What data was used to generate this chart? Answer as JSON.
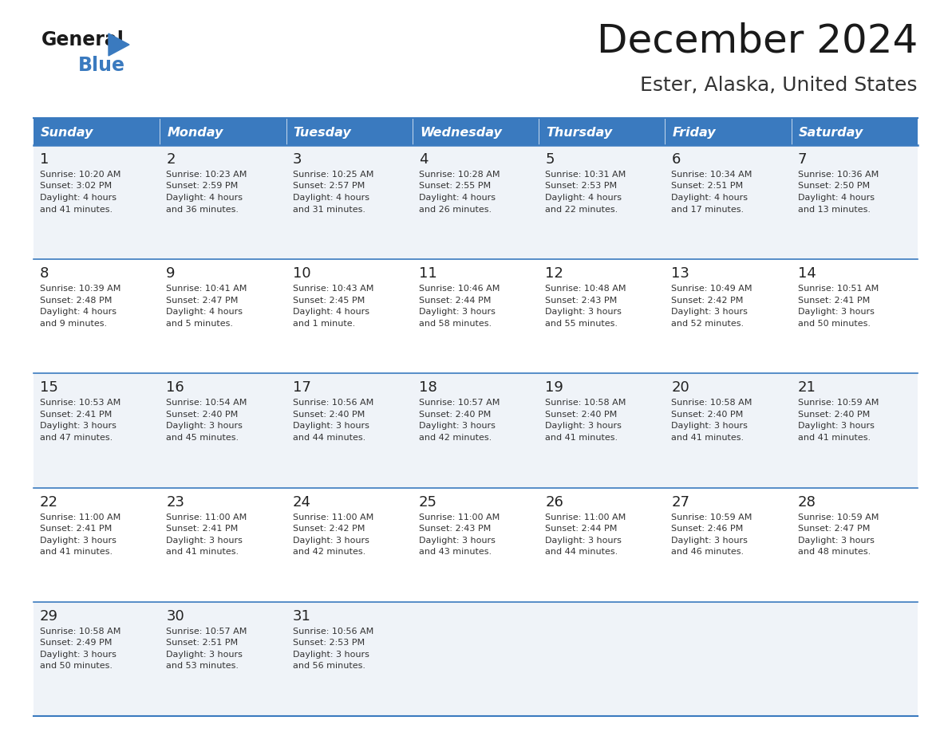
{
  "title": "December 2024",
  "subtitle": "Ester, Alaska, United States",
  "header_color": "#3a7abf",
  "header_text_color": "#ffffff",
  "cell_bg_even": "#eff3f8",
  "cell_bg_odd": "#ffffff",
  "border_color": "#3a7abf",
  "grid_line_color": "#b0c4de",
  "day_headers": [
    "Sunday",
    "Monday",
    "Tuesday",
    "Wednesday",
    "Thursday",
    "Friday",
    "Saturday"
  ],
  "weeks": [
    [
      {
        "day": "1",
        "sunrise": "10:20 AM",
        "sunset": "3:02 PM",
        "daylight": "4 hours",
        "daylight2": "and 41 minutes."
      },
      {
        "day": "2",
        "sunrise": "10:23 AM",
        "sunset": "2:59 PM",
        "daylight": "4 hours",
        "daylight2": "and 36 minutes."
      },
      {
        "day": "3",
        "sunrise": "10:25 AM",
        "sunset": "2:57 PM",
        "daylight": "4 hours",
        "daylight2": "and 31 minutes."
      },
      {
        "day": "4",
        "sunrise": "10:28 AM",
        "sunset": "2:55 PM",
        "daylight": "4 hours",
        "daylight2": "and 26 minutes."
      },
      {
        "day": "5",
        "sunrise": "10:31 AM",
        "sunset": "2:53 PM",
        "daylight": "4 hours",
        "daylight2": "and 22 minutes."
      },
      {
        "day": "6",
        "sunrise": "10:34 AM",
        "sunset": "2:51 PM",
        "daylight": "4 hours",
        "daylight2": "and 17 minutes."
      },
      {
        "day": "7",
        "sunrise": "10:36 AM",
        "sunset": "2:50 PM",
        "daylight": "4 hours",
        "daylight2": "and 13 minutes."
      }
    ],
    [
      {
        "day": "8",
        "sunrise": "10:39 AM",
        "sunset": "2:48 PM",
        "daylight": "4 hours",
        "daylight2": "and 9 minutes."
      },
      {
        "day": "9",
        "sunrise": "10:41 AM",
        "sunset": "2:47 PM",
        "daylight": "4 hours",
        "daylight2": "and 5 minutes."
      },
      {
        "day": "10",
        "sunrise": "10:43 AM",
        "sunset": "2:45 PM",
        "daylight": "4 hours",
        "daylight2": "and 1 minute."
      },
      {
        "day": "11",
        "sunrise": "10:46 AM",
        "sunset": "2:44 PM",
        "daylight": "3 hours",
        "daylight2": "and 58 minutes."
      },
      {
        "day": "12",
        "sunrise": "10:48 AM",
        "sunset": "2:43 PM",
        "daylight": "3 hours",
        "daylight2": "and 55 minutes."
      },
      {
        "day": "13",
        "sunrise": "10:49 AM",
        "sunset": "2:42 PM",
        "daylight": "3 hours",
        "daylight2": "and 52 minutes."
      },
      {
        "day": "14",
        "sunrise": "10:51 AM",
        "sunset": "2:41 PM",
        "daylight": "3 hours",
        "daylight2": "and 50 minutes."
      }
    ],
    [
      {
        "day": "15",
        "sunrise": "10:53 AM",
        "sunset": "2:41 PM",
        "daylight": "3 hours",
        "daylight2": "and 47 minutes."
      },
      {
        "day": "16",
        "sunrise": "10:54 AM",
        "sunset": "2:40 PM",
        "daylight": "3 hours",
        "daylight2": "and 45 minutes."
      },
      {
        "day": "17",
        "sunrise": "10:56 AM",
        "sunset": "2:40 PM",
        "daylight": "3 hours",
        "daylight2": "and 44 minutes."
      },
      {
        "day": "18",
        "sunrise": "10:57 AM",
        "sunset": "2:40 PM",
        "daylight": "3 hours",
        "daylight2": "and 42 minutes."
      },
      {
        "day": "19",
        "sunrise": "10:58 AM",
        "sunset": "2:40 PM",
        "daylight": "3 hours",
        "daylight2": "and 41 minutes."
      },
      {
        "day": "20",
        "sunrise": "10:58 AM",
        "sunset": "2:40 PM",
        "daylight": "3 hours",
        "daylight2": "and 41 minutes."
      },
      {
        "day": "21",
        "sunrise": "10:59 AM",
        "sunset": "2:40 PM",
        "daylight": "3 hours",
        "daylight2": "and 41 minutes."
      }
    ],
    [
      {
        "day": "22",
        "sunrise": "11:00 AM",
        "sunset": "2:41 PM",
        "daylight": "3 hours",
        "daylight2": "and 41 minutes."
      },
      {
        "day": "23",
        "sunrise": "11:00 AM",
        "sunset": "2:41 PM",
        "daylight": "3 hours",
        "daylight2": "and 41 minutes."
      },
      {
        "day": "24",
        "sunrise": "11:00 AM",
        "sunset": "2:42 PM",
        "daylight": "3 hours",
        "daylight2": "and 42 minutes."
      },
      {
        "day": "25",
        "sunrise": "11:00 AM",
        "sunset": "2:43 PM",
        "daylight": "3 hours",
        "daylight2": "and 43 minutes."
      },
      {
        "day": "26",
        "sunrise": "11:00 AM",
        "sunset": "2:44 PM",
        "daylight": "3 hours",
        "daylight2": "and 44 minutes."
      },
      {
        "day": "27",
        "sunrise": "10:59 AM",
        "sunset": "2:46 PM",
        "daylight": "3 hours",
        "daylight2": "and 46 minutes."
      },
      {
        "day": "28",
        "sunrise": "10:59 AM",
        "sunset": "2:47 PM",
        "daylight": "3 hours",
        "daylight2": "and 48 minutes."
      }
    ],
    [
      {
        "day": "29",
        "sunrise": "10:58 AM",
        "sunset": "2:49 PM",
        "daylight": "3 hours",
        "daylight2": "and 50 minutes."
      },
      {
        "day": "30",
        "sunrise": "10:57 AM",
        "sunset": "2:51 PM",
        "daylight": "3 hours",
        "daylight2": "and 53 minutes."
      },
      {
        "day": "31",
        "sunrise": "10:56 AM",
        "sunset": "2:53 PM",
        "daylight": "3 hours",
        "daylight2": "and 56 minutes."
      },
      null,
      null,
      null,
      null
    ]
  ]
}
